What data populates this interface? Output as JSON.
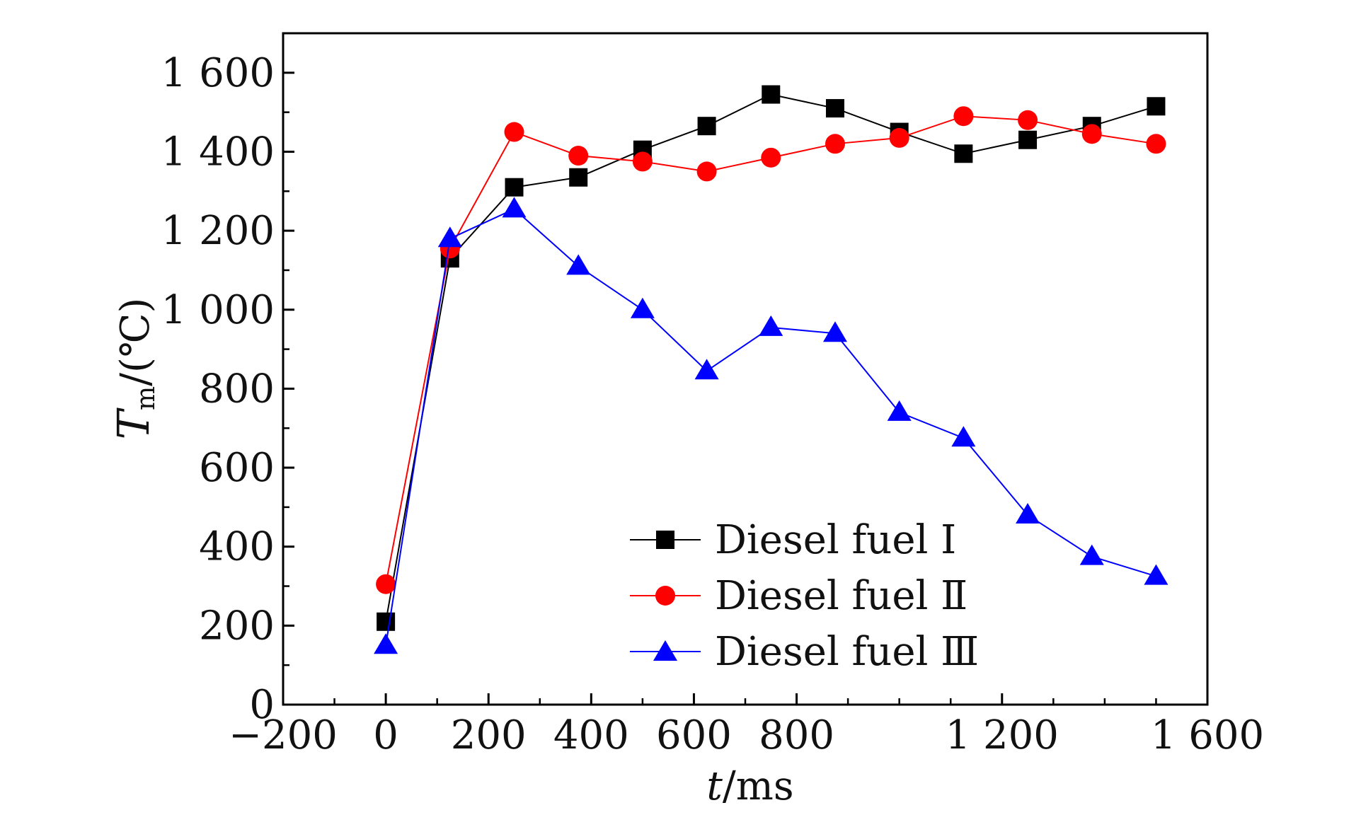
{
  "chart_data": {
    "type": "line",
    "xlabel_italic": "t",
    "xlabel_rest": "/ms",
    "ylabel_italic": "T",
    "ylabel_sub": "m",
    "ylabel_rest": "/(℃)",
    "xlim": [
      -200,
      1600
    ],
    "ylim": [
      0,
      1700
    ],
    "x_ticks": [
      -200,
      0,
      200,
      400,
      600,
      800,
      1200,
      1600
    ],
    "x_tick_labels": [
      "−200",
      "0",
      "200",
      "400",
      "600",
      "800",
      "1 200",
      "1 600"
    ],
    "x_minor_ticks": [
      -100,
      100,
      300,
      500,
      700,
      900,
      1000,
      1100,
      1300,
      1400,
      1500
    ],
    "y_ticks": [
      0,
      200,
      400,
      600,
      800,
      1000,
      1200,
      1400,
      1600
    ],
    "y_tick_labels": [
      "0",
      "200",
      "400",
      "600",
      "800",
      "1 000",
      "1 200",
      "1 400",
      "1 600"
    ],
    "y_minor_ticks": [
      100,
      300,
      500,
      700,
      900,
      1100,
      1300,
      1500
    ],
    "grid": false,
    "legend_position": "bottom-right",
    "x": [
      0,
      125,
      250,
      375,
      500,
      625,
      750,
      875,
      1000,
      1125,
      1250,
      1375,
      1500
    ],
    "series": [
      {
        "name": "Diesel fuel Ⅰ",
        "color": "#000000",
        "marker": "square",
        "values": [
          210,
          1130,
          1310,
          1335,
          1405,
          1465,
          1545,
          1510,
          1450,
          1395,
          1430,
          1465,
          1515
        ]
      },
      {
        "name": "Diesel fuel Ⅱ",
        "color": "#ff0000",
        "marker": "circle",
        "values": [
          305,
          1155,
          1450,
          1390,
          1375,
          1350,
          1385,
          1420,
          1435,
          1490,
          1480,
          1445,
          1420
        ]
      },
      {
        "name": "Diesel fuel Ⅲ",
        "color": "#0000ff",
        "marker": "triangle",
        "values": [
          150,
          1180,
          1255,
          1110,
          1000,
          845,
          955,
          940,
          740,
          675,
          480,
          375,
          325
        ]
      }
    ]
  }
}
